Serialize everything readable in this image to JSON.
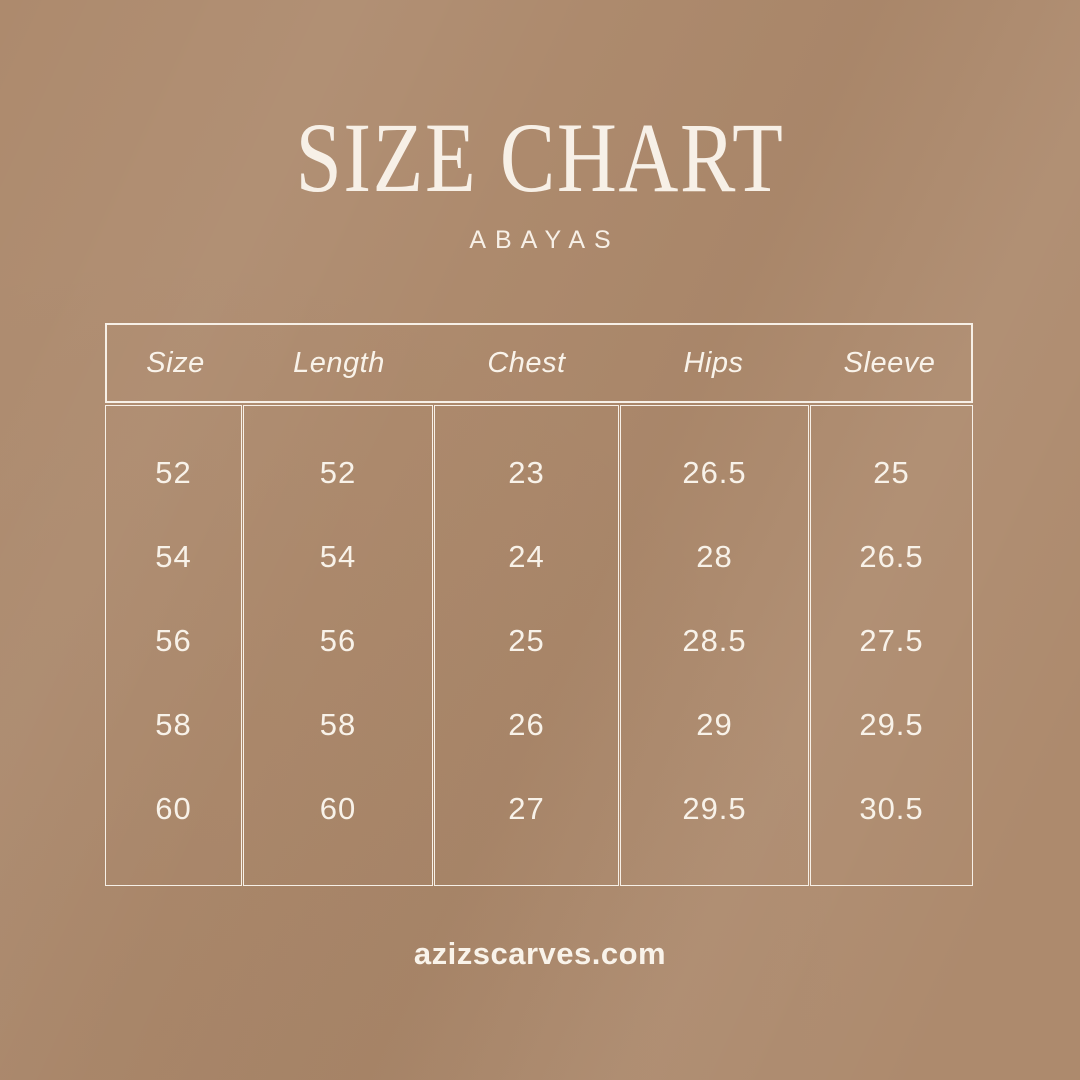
{
  "header": {
    "title": "SIZE CHART",
    "subtitle": "ABAYAS"
  },
  "footer": {
    "website": "azizscarves.com"
  },
  "colors": {
    "background": "#ad8a6d",
    "cream": "#f7f0e7"
  },
  "chart_data": {
    "type": "table",
    "title": "SIZE CHART",
    "subtitle": "ABAYAS",
    "columns": [
      "Size",
      "Length",
      "Chest",
      "Hips",
      "Sleeve"
    ],
    "rows": [
      [
        52,
        52,
        23,
        26.5,
        25
      ],
      [
        54,
        54,
        24,
        28,
        26.5
      ],
      [
        56,
        56,
        25,
        28.5,
        27.5
      ],
      [
        58,
        58,
        26,
        29,
        29.5
      ],
      [
        60,
        60,
        27,
        29.5,
        30.5
      ]
    ]
  }
}
